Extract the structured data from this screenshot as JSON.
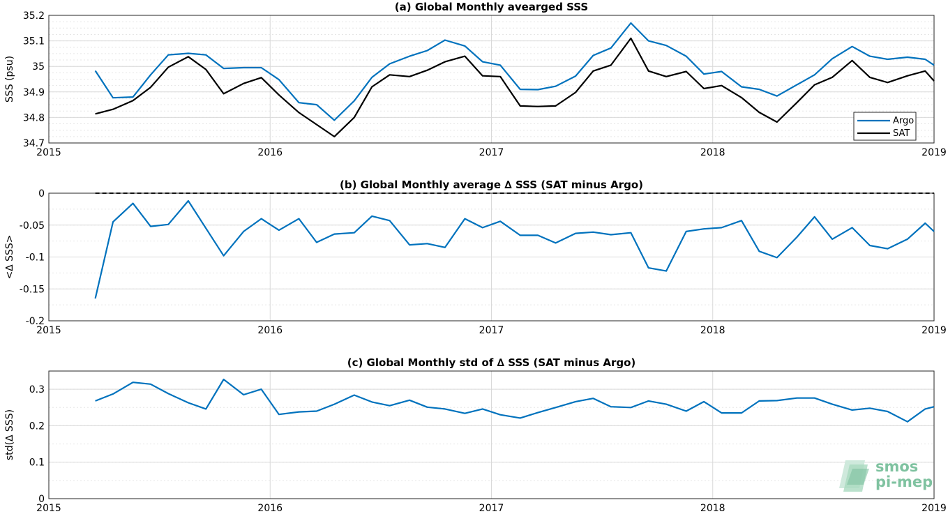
{
  "chart_data": [
    {
      "type": "line",
      "title": "(a) Global Monthly avearged SSS",
      "xlabel": "",
      "ylabel": "SSS (psu)",
      "xlim": [
        2015,
        2019
      ],
      "ylim": [
        34.7,
        35.2
      ],
      "xticks": [
        "2015",
        "2016",
        "2017",
        "2018",
        "2019"
      ],
      "yticks": [
        "34.7",
        "34.8",
        "34.9",
        "35",
        "35.1",
        "35.2"
      ],
      "grid": true,
      "legend": "bottom-right",
      "x": [
        2015.21,
        2015.29,
        2015.38,
        2015.46,
        2015.54,
        2015.63,
        2015.71,
        2015.79,
        2015.88,
        2015.96,
        2016.04,
        2016.13,
        2016.21,
        2016.29,
        2016.38,
        2016.46,
        2016.54,
        2016.63,
        2016.71,
        2016.79,
        2016.88,
        2016.96,
        2017.04,
        2017.13,
        2017.21,
        2017.29,
        2017.38,
        2017.46,
        2017.54,
        2017.63,
        2017.71,
        2017.79,
        2017.88,
        2017.96,
        2018.04,
        2018.13,
        2018.21,
        2018.29,
        2018.38,
        2018.46,
        2018.54,
        2018.63,
        2018.71,
        2018.79,
        2018.88,
        2018.96,
        2019.0
      ],
      "series": [
        {
          "name": "Argo",
          "color": "#0072bd",
          "values": [
            34.983,
            34.877,
            34.88,
            34.967,
            35.045,
            35.051,
            35.045,
            34.992,
            34.995,
            34.995,
            34.948,
            34.858,
            34.85,
            34.789,
            34.865,
            34.957,
            35.01,
            35.04,
            35.062,
            35.103,
            35.08,
            35.018,
            35.005,
            34.91,
            34.909,
            34.922,
            34.962,
            35.043,
            35.072,
            35.17,
            35.1,
            35.082,
            35.04,
            34.97,
            34.98,
            34.92,
            34.91,
            34.884,
            34.928,
            34.967,
            35.03,
            35.078,
            35.04,
            35.028,
            35.036,
            35.028,
            35.005
          ]
        },
        {
          "name": "SAT",
          "color": "#000000",
          "values": [
            34.814,
            34.832,
            34.866,
            34.918,
            34.997,
            35.038,
            34.988,
            34.893,
            34.933,
            34.956,
            34.888,
            34.819,
            34.772,
            34.725,
            34.8,
            34.92,
            34.967,
            34.96,
            34.985,
            35.018,
            35.04,
            34.963,
            34.96,
            34.845,
            34.843,
            34.845,
            34.898,
            34.982,
            35.005,
            35.11,
            34.982,
            34.96,
            34.98,
            34.913,
            34.925,
            34.878,
            34.82,
            34.782,
            34.858,
            34.928,
            34.957,
            35.023,
            34.957,
            34.937,
            34.963,
            34.982,
            34.943
          ]
        }
      ]
    },
    {
      "type": "line",
      "title": "(b) Global Monthly average ∆ SSS (SAT minus Argo)",
      "xlabel": "",
      "ylabel": "<∆ SSS>",
      "xlim": [
        2015,
        2019
      ],
      "ylim": [
        -0.2,
        0
      ],
      "xticks": [
        "2015",
        "2016",
        "2017",
        "2018",
        "2019"
      ],
      "yticks": [
        "-0.2",
        "-0.15",
        "-0.1",
        "-0.05",
        "0"
      ],
      "grid": true,
      "reference_line": 0,
      "x": [
        2015.21,
        2015.29,
        2015.38,
        2015.46,
        2015.54,
        2015.63,
        2015.71,
        2015.79,
        2015.88,
        2015.96,
        2016.04,
        2016.13,
        2016.21,
        2016.29,
        2016.38,
        2016.46,
        2016.54,
        2016.63,
        2016.71,
        2016.79,
        2016.88,
        2016.96,
        2017.04,
        2017.13,
        2017.21,
        2017.29,
        2017.38,
        2017.46,
        2017.54,
        2017.63,
        2017.71,
        2017.79,
        2017.88,
        2017.96,
        2018.04,
        2018.13,
        2018.21,
        2018.29,
        2018.38,
        2018.46,
        2018.54,
        2018.63,
        2018.71,
        2018.79,
        2018.88,
        2018.96,
        2019.0
      ],
      "series": [
        {
          "name": "",
          "color": "#0072bd",
          "values": [
            -0.165,
            -0.045,
            -0.016,
            -0.052,
            -0.049,
            -0.012,
            -0.055,
            -0.098,
            -0.06,
            -0.04,
            -0.058,
            -0.04,
            -0.077,
            -0.064,
            -0.062,
            -0.036,
            -0.043,
            -0.081,
            -0.079,
            -0.085,
            -0.04,
            -0.054,
            -0.044,
            -0.066,
            -0.066,
            -0.078,
            -0.063,
            -0.061,
            -0.065,
            -0.062,
            -0.117,
            -0.122,
            -0.06,
            -0.056,
            -0.054,
            -0.043,
            -0.091,
            -0.101,
            -0.069,
            -0.037,
            -0.072,
            -0.054,
            -0.082,
            -0.087,
            -0.072,
            -0.047,
            -0.06
          ]
        }
      ]
    },
    {
      "type": "line",
      "title": "(c) Global Monthly std of ∆ SSS (SAT minus Argo)",
      "xlabel": "",
      "ylabel": "std(∆ SSS)",
      "xlim": [
        2015,
        2019
      ],
      "ylim": [
        0,
        0.35
      ],
      "xticks": [
        "2015",
        "2016",
        "2017",
        "2018",
        "2019"
      ],
      "yticks": [
        "0",
        "0.1",
        "0.2",
        "0.3"
      ],
      "grid": true,
      "x": [
        2015.21,
        2015.29,
        2015.38,
        2015.46,
        2015.54,
        2015.63,
        2015.71,
        2015.79,
        2015.88,
        2015.96,
        2016.04,
        2016.13,
        2016.21,
        2016.29,
        2016.38,
        2016.46,
        2016.54,
        2016.63,
        2016.71,
        2016.79,
        2016.88,
        2016.96,
        2017.04,
        2017.13,
        2017.21,
        2017.29,
        2017.38,
        2017.46,
        2017.54,
        2017.63,
        2017.71,
        2017.79,
        2017.88,
        2017.96,
        2018.04,
        2018.13,
        2018.21,
        2018.29,
        2018.38,
        2018.46,
        2018.54,
        2018.63,
        2018.71,
        2018.79,
        2018.88,
        2018.96,
        2019.0
      ],
      "series": [
        {
          "name": "",
          "color": "#0072bd",
          "values": [
            0.268,
            0.287,
            0.319,
            0.314,
            0.288,
            0.263,
            0.246,
            0.327,
            0.285,
            0.3,
            0.231,
            0.238,
            0.24,
            0.259,
            0.284,
            0.265,
            0.255,
            0.27,
            0.251,
            0.246,
            0.234,
            0.246,
            0.23,
            0.221,
            0.236,
            0.25,
            0.266,
            0.275,
            0.252,
            0.25,
            0.268,
            0.259,
            0.24,
            0.266,
            0.235,
            0.235,
            0.268,
            0.269,
            0.276,
            0.276,
            0.259,
            0.243,
            0.248,
            0.239,
            0.211,
            0.246,
            0.252
          ]
        }
      ]
    }
  ],
  "logo": {
    "line1": "smos",
    "line2": "pi-mep",
    "color": "#7fc2a0"
  }
}
